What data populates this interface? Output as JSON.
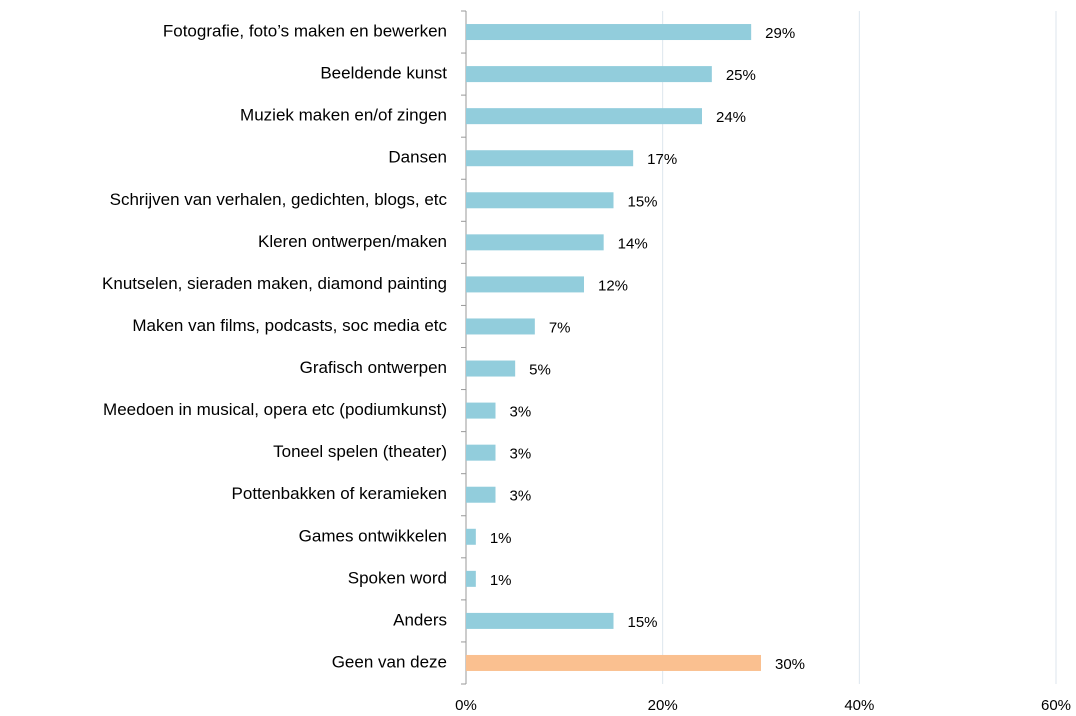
{
  "chart_data": {
    "type": "barh",
    "categories": [
      "Fotografie, foto’s maken en bewerken",
      "Beeldende kunst",
      "Muziek maken en/of zingen",
      "Dansen",
      "Schrijven van verhalen, gedichten, blogs, etc",
      "Kleren ontwerpen/maken",
      "Knutselen, sieraden maken, diamond painting",
      "Maken van films, podcasts, soc media etc",
      "Grafisch ontwerpen",
      "Meedoen in musical, opera etc (podiumkunst)",
      "Toneel spelen (theater)",
      "Pottenbakken of keramieken",
      "Games ontwikkelen",
      "Spoken word",
      "Anders",
      "Geen van deze"
    ],
    "values": [
      29,
      25,
      24,
      17,
      15,
      14,
      12,
      7,
      5,
      3,
      3,
      3,
      1,
      1,
      15,
      30
    ],
    "value_labels": [
      "29%",
      "25%",
      "24%",
      "17%",
      "15%",
      "14%",
      "12%",
      "7%",
      "5%",
      "3%",
      "3%",
      "3%",
      "1%",
      "1%",
      "15%",
      "30%"
    ],
    "colors": [
      "#92cddc",
      "#92cddc",
      "#92cddc",
      "#92cddc",
      "#92cddc",
      "#92cddc",
      "#92cddc",
      "#92cddc",
      "#92cddc",
      "#92cddc",
      "#92cddc",
      "#92cddc",
      "#92cddc",
      "#92cddc",
      "#92cddc",
      "#fac090"
    ],
    "xlim": [
      0,
      60
    ],
    "xticks": [
      {
        "value": 0,
        "label": "0%"
      },
      {
        "value": 20,
        "label": "20%"
      },
      {
        "value": 40,
        "label": "40%"
      },
      {
        "value": 60,
        "label": "60%"
      }
    ],
    "grid": true
  }
}
